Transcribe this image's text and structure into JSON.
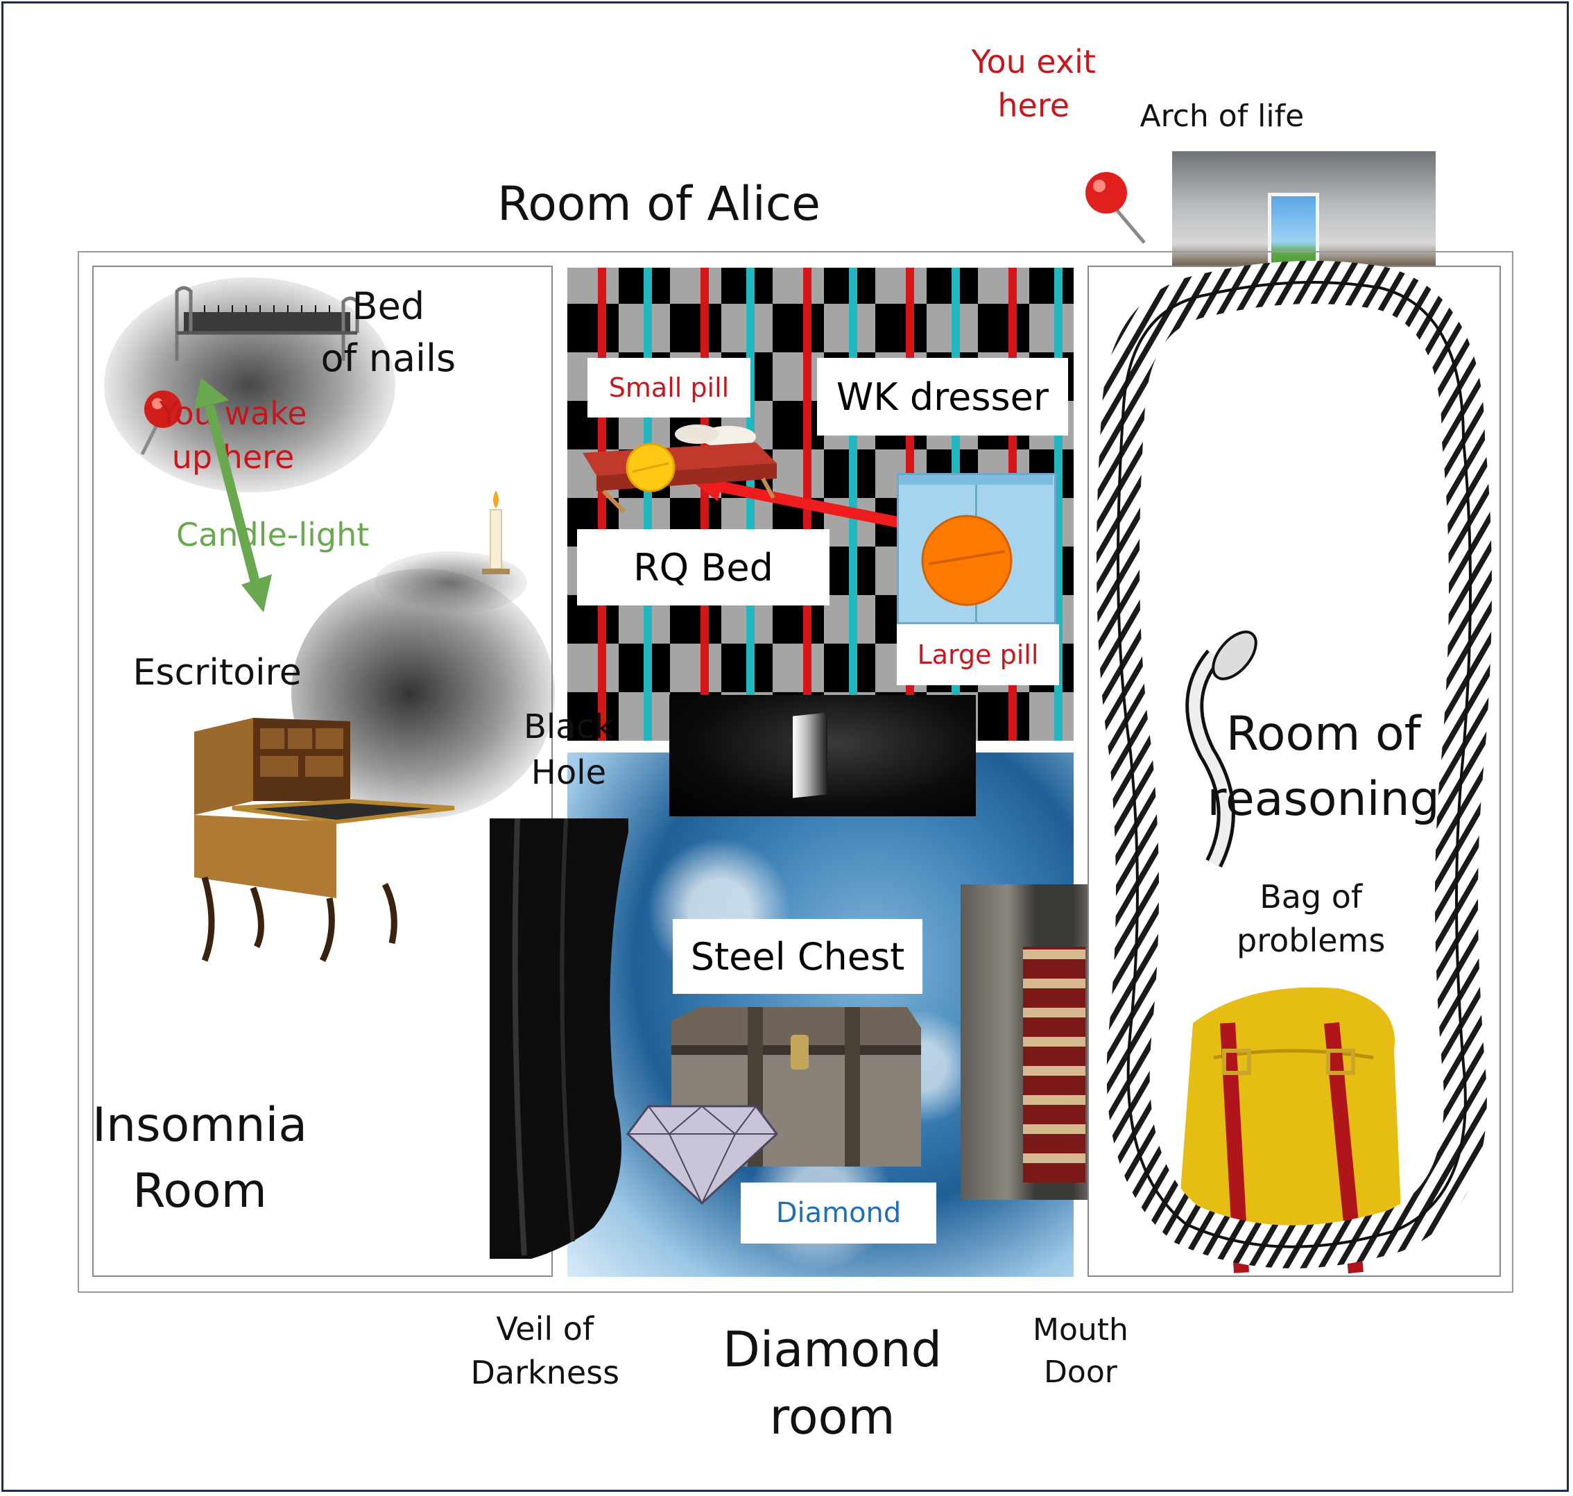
{
  "title": "Room of Alice",
  "exit_label": [
    "You exit",
    "here"
  ],
  "arch_label": "Arch of life",
  "insomnia": {
    "bed_label": [
      "Bed",
      "of nails"
    ],
    "wake_label": [
      "You wake",
      "up here"
    ],
    "candle_label": "Candle-light",
    "escritoire_label": "Escritoire",
    "room_label": [
      "Insomnia",
      "Room"
    ]
  },
  "center": {
    "small_pill": "Small pill",
    "wk_dresser": "WK dresser",
    "rq_bed": "RQ Bed",
    "large_pill": "Large pill",
    "black_hole": [
      "Black",
      "Hole"
    ],
    "steel_chest": "Steel Chest",
    "diamond": "Diamond"
  },
  "reasoning": {
    "room_label": [
      "Room of",
      "reasoning"
    ],
    "bag_label": [
      "Bag of",
      "problems"
    ]
  },
  "bottom": {
    "veil_label": [
      "Veil of",
      "Darkness"
    ],
    "diamond_room": [
      "Diamond",
      "room"
    ],
    "mouth_door": [
      "Mouth",
      "Door"
    ]
  },
  "colors": {
    "frame": "#1f2d4d",
    "red_text": "#c8161d",
    "green_arrow": "#6aa84f",
    "red_arrow": "#ee1c1c",
    "diamond_text": "#1f6fb5",
    "pill_orange": "#ff7a00",
    "pill_yellow": "#ffc814"
  }
}
